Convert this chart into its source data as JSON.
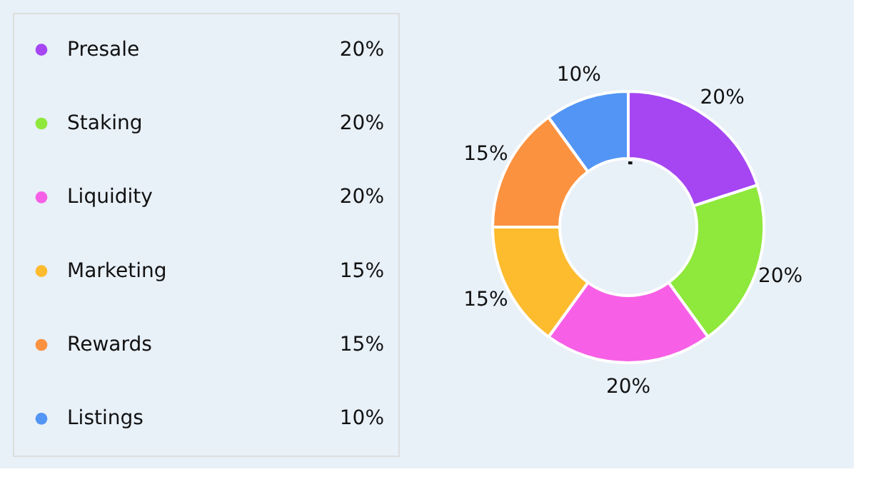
{
  "chart_data": {
    "type": "donut",
    "categories": [
      "Presale",
      "Staking",
      "Liquidity",
      "Marketing",
      "Rewards",
      "Listings"
    ],
    "values": [
      20,
      20,
      20,
      15,
      15,
      10
    ],
    "value_labels": [
      "20%",
      "20%",
      "20%",
      "15%",
      "15%",
      "10%"
    ],
    "colors": [
      "#a546f2",
      "#8fe83c",
      "#f760e6",
      "#fdbb2e",
      "#fb9240",
      "#5295f5"
    ],
    "legend": "left"
  }
}
